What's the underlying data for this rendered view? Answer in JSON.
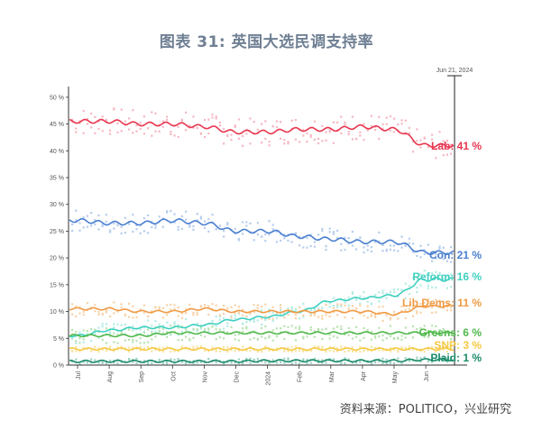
{
  "title": "图表 31: 英国大选民调支持率",
  "source": "资料来源：POLITICO，兴业研究",
  "chart_data": {
    "type": "line",
    "date_marker": "Jun 21, 2024",
    "y_ticks": [
      "0 %",
      "5 %",
      "10 %",
      "15 %",
      "20 %",
      "25 %",
      "30 %",
      "35 %",
      "40 %",
      "45 %",
      "50 %"
    ],
    "ylim": [
      0,
      52
    ],
    "x_ticks": [
      "Jul",
      "Aug",
      "Sep",
      "Oct",
      "Nov",
      "Dec",
      "2024",
      "Feb",
      "Mar",
      "Apr",
      "May",
      "Jun"
    ],
    "x": [
      "Jul 2023",
      "Aug 2023",
      "Sep 2023",
      "Oct 2023",
      "Nov 2023",
      "Dec 2023",
      "Jan 2024",
      "Feb 2024",
      "Mar 2024",
      "Apr 2024",
      "May 2024",
      "Jun 2024"
    ],
    "series": [
      {
        "name": "Lab",
        "label": "Lab: 41 %",
        "color": "#e8364f",
        "light": "#f5b8c2",
        "values": [
          45.5,
          45.5,
          45,
          45,
          44.5,
          43.5,
          43.5,
          44,
          44,
          44.5,
          44,
          41
        ]
      },
      {
        "name": "Con",
        "label": "Con: 21 %",
        "color": "#4a7fd0",
        "light": "#b7cdee",
        "values": [
          27,
          26.5,
          26.5,
          27,
          26.5,
          25,
          25,
          24,
          23.5,
          23,
          23,
          21
        ]
      },
      {
        "name": "Reform",
        "label": "Reform: 16 %",
        "color": "#3fd0c0",
        "light": "#b4ece4",
        "values": [
          5.5,
          6.5,
          7,
          7,
          7.5,
          8.5,
          9,
          10,
          12,
          12.5,
          13,
          16
        ]
      },
      {
        "name": "Lib Dems",
        "label": "Lib Dems: 11 %",
        "color": "#f09a44",
        "light": "#f8d2a8",
        "values": [
          10.5,
          10.5,
          10,
          10,
          10.5,
          10,
          10,
          10,
          10,
          10,
          9.5,
          11
        ]
      },
      {
        "name": "Greens",
        "label": "Greens: 6 %",
        "color": "#4fb84a",
        "light": "#b9e3b2",
        "values": [
          5.5,
          5.5,
          5.5,
          6,
          6,
          6,
          6,
          6,
          6,
          6,
          6,
          6
        ]
      },
      {
        "name": "SNP",
        "label": "SNP: 3 %",
        "color": "#f5c842",
        "light": "#f9e3a0",
        "values": [
          3,
          3,
          3,
          3,
          3,
          3,
          3,
          3,
          3,
          3,
          3,
          3
        ]
      },
      {
        "name": "Plaid",
        "label": "Plaid: 1 %",
        "color": "#1a8a6a",
        "light": "#9ed3c2",
        "values": [
          0.7,
          0.7,
          0.7,
          0.7,
          0.7,
          0.7,
          0.8,
          0.8,
          0.8,
          0.8,
          0.8,
          1
        ]
      }
    ]
  }
}
